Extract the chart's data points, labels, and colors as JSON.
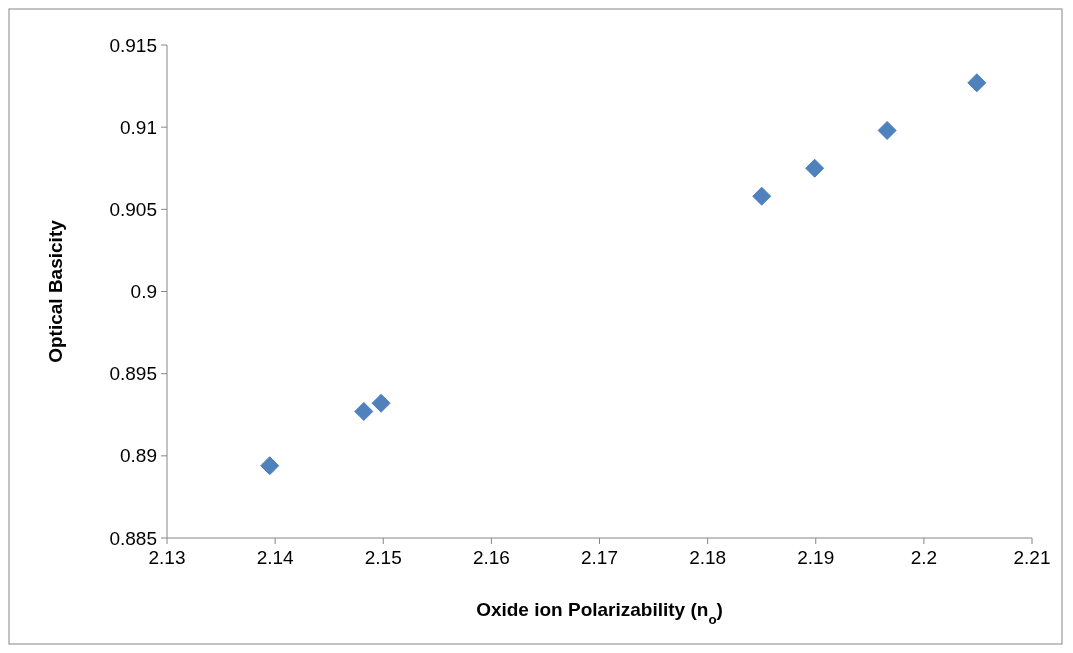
{
  "chart_data": {
    "type": "scatter",
    "xlabel": "Oxide ion Polarizability (n$_{o}$)",
    "ylabel": "Optical Basicity",
    "series": [
      {
        "color": "#4f81bd",
        "x": [
          2.1395,
          2.1482,
          2.1498,
          2.185,
          2.1899,
          2.1966,
          2.2049
        ],
        "values": [
          0.8894,
          0.8927,
          0.8932,
          0.9058,
          0.9075,
          0.9098,
          0.9127
        ]
      }
    ],
    "marker": "diamond",
    "xlim": [
      2.13,
      2.21
    ],
    "xticks": [
      2.13,
      2.14,
      2.15,
      2.16,
      2.17,
      2.18,
      2.19,
      2.2,
      2.21
    ],
    "ylim": [
      0.885,
      0.915
    ],
    "yticks": [
      0.885,
      0.89,
      0.895,
      0.9,
      0.905,
      0.91,
      0.915
    ]
  }
}
